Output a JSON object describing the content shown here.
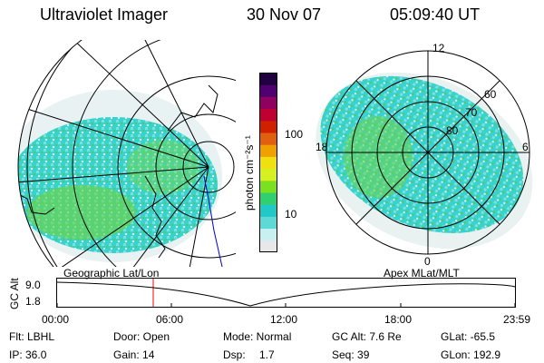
{
  "header": {
    "instrument": "Ultraviolet Imager",
    "date": "30 Nov 07",
    "time": "05:09:40 UT"
  },
  "colorbar": {
    "label": "photon cm⁻²s⁻¹",
    "ticks": [
      "100",
      "10"
    ],
    "colors": [
      "#e8e8e8",
      "#c8f0f0",
      "#5fd8d8",
      "#20c8c8",
      "#30d070",
      "#7be020",
      "#d6f020",
      "#f0e010",
      "#f0a000",
      "#e06010",
      "#d02000",
      "#c00030",
      "#900060",
      "#500070",
      "#200040"
    ]
  },
  "geo_map": {
    "label": "Geographic Lat/Lon"
  },
  "polar_map": {
    "label": "Apex MLat/MLT",
    "mlt_labels": [
      "12",
      "18",
      "6",
      "0"
    ],
    "mlat_labels": [
      "60",
      "70",
      "80"
    ]
  },
  "altitude_plot": {
    "ylabel": "GC Alt",
    "yticks": [
      "9.0",
      "1.8"
    ],
    "xticks": [
      "00:00",
      "06:00",
      "12:00",
      "18:00",
      "23:59"
    ]
  },
  "info": {
    "row1": {
      "flt": "Flt: LBHL",
      "door": "Door: Open",
      "mode": "Mode: Normal",
      "gcalt": "GC Alt: 7.6 Re",
      "glat": "GLat: -65.5"
    },
    "row2": {
      "ip": "IP: 36.0",
      "gain": "Gain: 14",
      "dsp_label": "Dsp:",
      "dsp_value": "1.7",
      "seq": "Seq: 39",
      "glon": "GLon: 192.9"
    }
  }
}
